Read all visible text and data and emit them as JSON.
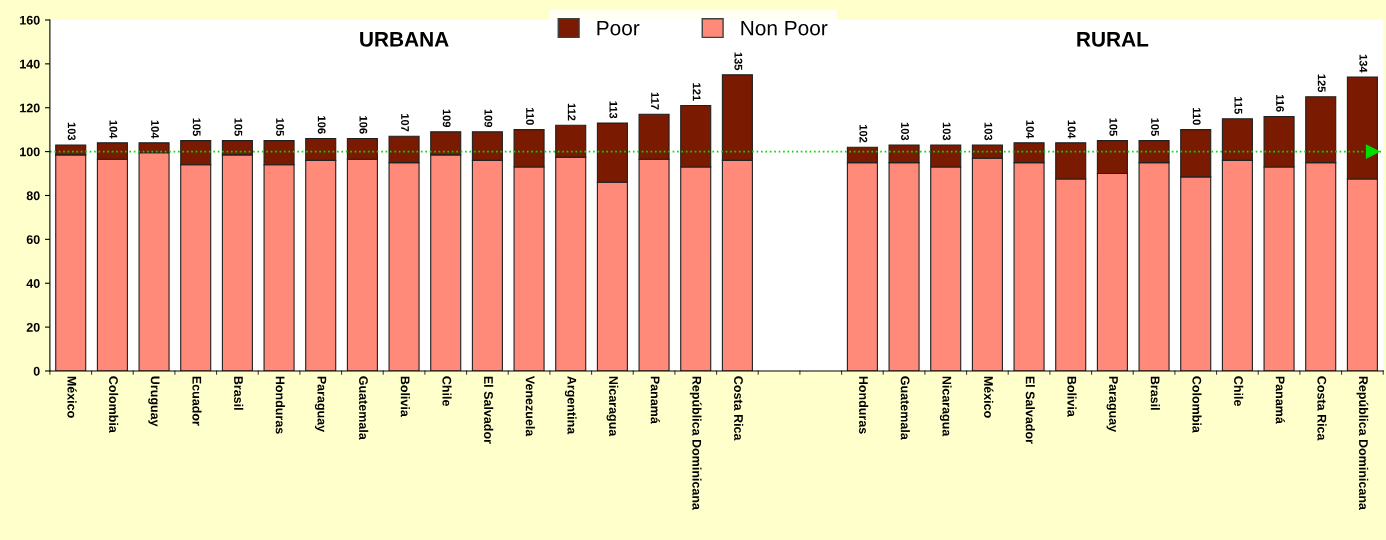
{
  "chart_data": {
    "type": "bar",
    "stacked": true,
    "annotations": [
      "URBANA",
      "RURAL"
    ],
    "categories": [
      "México",
      "Colombia",
      "Uruguay",
      "Ecuador",
      "Brasil",
      "Honduras",
      "Paraguay",
      "Guatemala",
      "Bolivia",
      "Chile",
      "El Salvador",
      "Venezuela",
      "Argentina",
      "Nicaragua",
      "Panamá",
      "República Dominicana",
      "Costa Rica",
      null,
      null,
      "Honduras",
      "Guatemala",
      "Nicaragua",
      "México",
      "El Salvador",
      "Bolivia",
      "Paraguay",
      "Brasil",
      "Colombia",
      "Chile",
      "Panamá",
      "Costa Rica",
      "República Dominicana"
    ],
    "series": [
      {
        "name": "Non Poor",
        "color": "#ff8a7a",
        "values": [
          98.5,
          96.5,
          99.5,
          94,
          98.5,
          94,
          96,
          96.5,
          95,
          98.5,
          96,
          93,
          97.5,
          86,
          96.5,
          93,
          96,
          null,
          null,
          95,
          95,
          93,
          97,
          95,
          87.5,
          90,
          95,
          88.5,
          96,
          93,
          95,
          87.5
        ]
      },
      {
        "name": "Poor",
        "color": "#7a1a00",
        "values": [
          4.5,
          7.5,
          4.5,
          11,
          6.5,
          11,
          10,
          9.5,
          12,
          10.5,
          13,
          17,
          14.5,
          27,
          20.5,
          28,
          39,
          null,
          null,
          7,
          8,
          10,
          6,
          9,
          16.5,
          15,
          10,
          21.5,
          19,
          23,
          30,
          46.5
        ]
      }
    ],
    "totals": [
      "103",
      "104",
      "104",
      "105",
      "105",
      "105",
      "106",
      "106",
      "107",
      "109",
      "109",
      "110",
      "112",
      "113",
      "117",
      "121",
      "135",
      null,
      null,
      "102",
      "103",
      "103",
      "103",
      "104",
      "104",
      "105",
      "105",
      "110",
      "115",
      "116",
      "125",
      "134"
    ],
    "ylim": [
      0,
      160
    ],
    "yticks": [
      0,
      20,
      40,
      60,
      80,
      100,
      120,
      140,
      160
    ],
    "ref_lines": [
      {
        "axis": "y",
        "value": 100,
        "color": "#00dd00",
        "line_style": "dotted"
      }
    ],
    "legend": "top",
    "grid": false
  }
}
